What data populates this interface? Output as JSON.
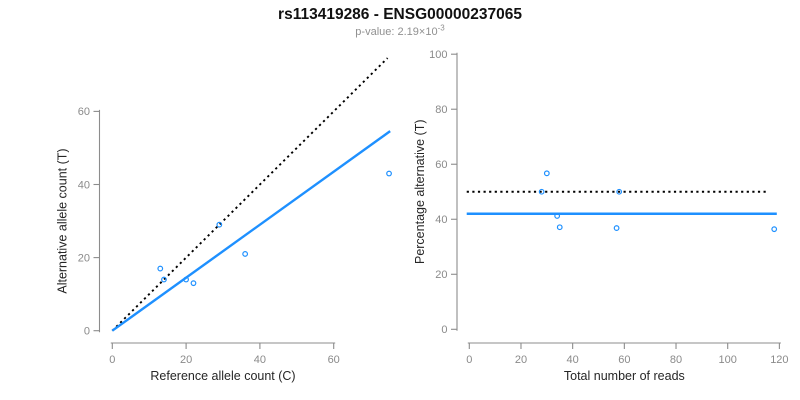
{
  "header": {
    "title": "rs113419286 - ENSG00000237065",
    "subtitle_main": "p-value: 2.19×10",
    "subtitle_exponent": "-3"
  },
  "colors": {
    "accent_blue": "#1E90FF",
    "dotted_black": "#000000",
    "axis_gray": "#8C8C8C",
    "tick_text_gray": "#8A8A8A",
    "label_text": "#262626",
    "subtitle_gray": "#909090",
    "background": "#FFFFFF"
  },
  "chart_data": [
    {
      "id": "allele-count-scatter",
      "type": "scatter",
      "title": "",
      "xlabel": "Reference allele count (C)",
      "ylabel": "Alternative allele count (T)",
      "xticks": [
        0,
        20,
        40,
        60
      ],
      "yticks": [
        0,
        20,
        40,
        60
      ],
      "xlim": [
        0,
        76
      ],
      "ylim": [
        0,
        76
      ],
      "grid": false,
      "legend": "none",
      "points": [
        [
          13,
          17
        ],
        [
          14,
          14
        ],
        [
          20,
          14
        ],
        [
          22,
          13
        ],
        [
          29,
          29
        ],
        [
          36,
          21
        ],
        [
          75,
          43
        ]
      ],
      "lines": [
        {
          "name": "identity-line",
          "style": "dotted",
          "color": "#000000",
          "x1": 0,
          "y1": 0,
          "x2": 74.6,
          "y2": 74.6
        },
        {
          "name": "fitted-line",
          "style": "solid",
          "color": "#1E90FF",
          "x1": 0,
          "y1": 0,
          "x2": 75.3,
          "y2": 54.6
        }
      ]
    },
    {
      "id": "percentage-alternative-scatter",
      "type": "scatter",
      "title": "",
      "xlabel": "Total number of reads",
      "ylabel": "Percentage alternative (T)",
      "xticks": [
        0,
        20,
        40,
        60,
        80,
        100,
        120
      ],
      "yticks": [
        0,
        20,
        40,
        60,
        80,
        100
      ],
      "xlim": [
        0,
        120
      ],
      "ylim": [
        0,
        100
      ],
      "grid": false,
      "legend": "none",
      "points": [
        [
          30,
          56.7
        ],
        [
          28,
          50
        ],
        [
          34,
          41.2
        ],
        [
          35,
          37.1
        ],
        [
          58,
          50
        ],
        [
          57,
          36.8
        ],
        [
          118,
          36.4
        ]
      ],
      "lines": [
        {
          "name": "expected-50pct-line",
          "style": "dotted",
          "color": "#000000",
          "x1": -1,
          "y1": 50,
          "x2": 116,
          "y2": 50
        },
        {
          "name": "fitted-mean-line",
          "style": "solid",
          "color": "#1E90FF",
          "x1": -1,
          "y1": 42,
          "x2": 119,
          "y2": 42
        }
      ]
    }
  ]
}
